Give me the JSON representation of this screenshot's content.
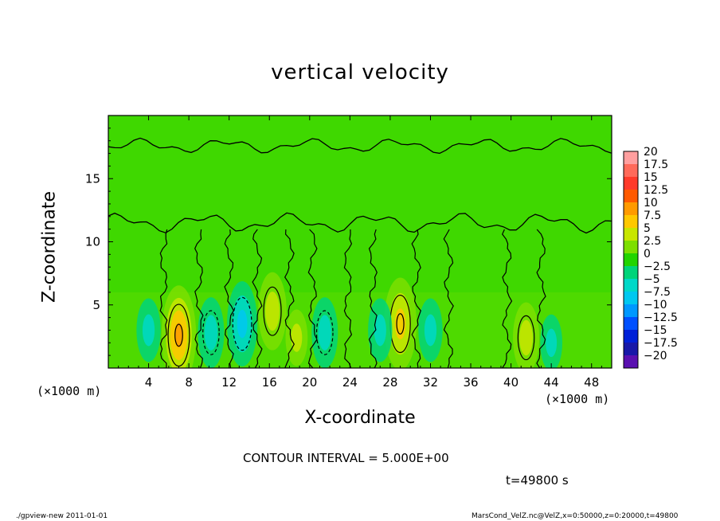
{
  "chart_data": {
    "type": "heatmap",
    "title": "vertical velocity",
    "xlabel": "X-coordinate",
    "ylabel": "Z-coordinate",
    "x_unit": "(×1000 m)",
    "xlim": [
      0,
      50
    ],
    "ylim": [
      0,
      20
    ],
    "x_ticks": [
      4,
      8,
      12,
      16,
      20,
      24,
      28,
      32,
      36,
      40,
      44,
      48
    ],
    "y_ticks": [
      5,
      10,
      15
    ],
    "contour_interval_text": "CONTOUR INTERVAL = 5.000E+00",
    "time_text": "t=49800 s",
    "colorbar": {
      "levels": [
        "20",
        "17.5",
        "15",
        "12.5",
        "10",
        "7.5",
        "5",
        "2.5",
        "0",
        "−2.5",
        "−5",
        "−7.5",
        "−10",
        "−12.5",
        "−15",
        "−17.5",
        "−20"
      ],
      "colors": [
        "#ff9f9f",
        "#ff6a5a",
        "#ff3a2a",
        "#ff5a00",
        "#ff9a00",
        "#ffc800",
        "#c8e600",
        "#7ddf00",
        "#22d400",
        "#00d47a",
        "#00d8c8",
        "#00c8f0",
        "#0098ff",
        "#0050ff",
        "#0020d8",
        "#1818a8",
        "#5a10b0"
      ]
    },
    "features": [
      {
        "kind": "updraft",
        "x": 7.0,
        "z": 2.6,
        "peak": 9
      },
      {
        "kind": "updraft",
        "x": 16.3,
        "z": 4.5,
        "peak": 6
      },
      {
        "kind": "updraft",
        "x": 29.0,
        "z": 3.5,
        "peak": 8
      },
      {
        "kind": "updraft",
        "x": 41.5,
        "z": 2.4,
        "peak": 5
      },
      {
        "kind": "updraft",
        "x": 18.7,
        "z": 2.4,
        "peak": 3
      },
      {
        "kind": "downdraft",
        "x": 4.0,
        "z": 3.0,
        "peak": -4
      },
      {
        "kind": "downdraft",
        "x": 10.2,
        "z": 2.8,
        "peak": -5
      },
      {
        "kind": "downdraft",
        "x": 13.3,
        "z": 3.5,
        "peak": -7
      },
      {
        "kind": "downdraft",
        "x": 21.5,
        "z": 2.8,
        "peak": -5
      },
      {
        "kind": "downdraft",
        "x": 27.0,
        "z": 3.0,
        "peak": -4
      },
      {
        "kind": "downdraft",
        "x": 32.0,
        "z": 3.0,
        "peak": -4
      },
      {
        "kind": "downdraft",
        "x": 44.0,
        "z": 2.0,
        "peak": -3
      }
    ]
  },
  "footer": {
    "left": "./gpview-new  2011-01-01",
    "right": "MarsCond_VelZ.nc@VelZ,x=0:50000,z=0:20000,t=49800"
  }
}
